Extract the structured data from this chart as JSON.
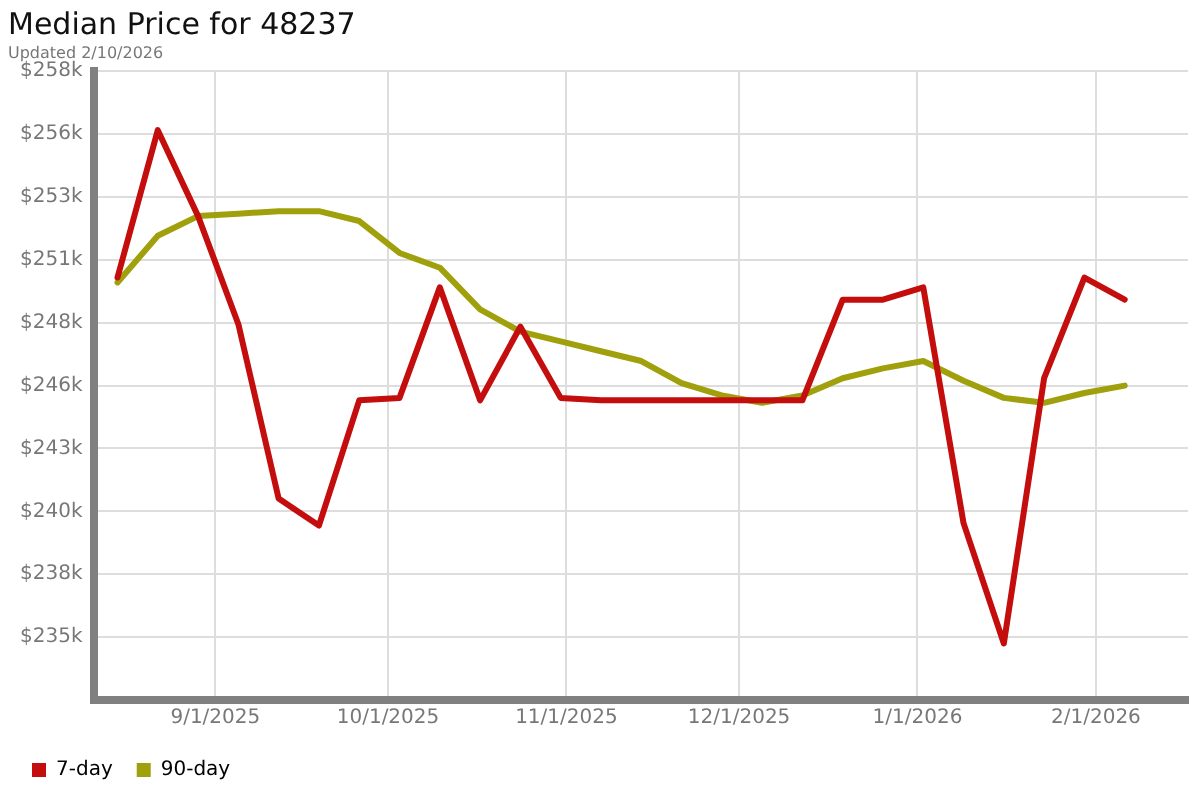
{
  "chart_data": {
    "type": "line",
    "title": "Median Price for 48237",
    "subtitle": "Updated 2/10/2026",
    "x": [
      "2025-08-15",
      "2025-08-22",
      "2025-08-29",
      "2025-09-05",
      "2025-09-12",
      "2025-09-19",
      "2025-09-26",
      "2025-10-03",
      "2025-10-10",
      "2025-10-17",
      "2025-10-24",
      "2025-10-31",
      "2025-11-07",
      "2025-11-14",
      "2025-11-21",
      "2025-11-28",
      "2025-12-05",
      "2025-12-12",
      "2025-12-19",
      "2025-12-26",
      "2026-01-02",
      "2026-01-09",
      "2026-01-16",
      "2026-01-23",
      "2026-01-30",
      "2026-02-06"
    ],
    "series": [
      {
        "name": "7-day",
        "color": "#c40d0d",
        "values": [
          249.9,
          255.9,
          252.4,
          248.0,
          240.9,
          239.8,
          244.9,
          245.0,
          249.5,
          244.9,
          247.9,
          245.0,
          244.9,
          244.9,
          244.9,
          244.9,
          244.9,
          244.9,
          249.0,
          249.0,
          249.5,
          239.9,
          235.0,
          245.8,
          249.9,
          249.0
        ]
      },
      {
        "name": "90-day",
        "color": "#a0a00c",
        "values": [
          249.7,
          251.6,
          252.4,
          252.5,
          252.6,
          252.6,
          252.2,
          250.9,
          250.3,
          248.6,
          247.7,
          247.3,
          246.9,
          246.5,
          245.6,
          245.1,
          244.8,
          245.1,
          245.8,
          246.2,
          246.5,
          245.7,
          245.0,
          244.8,
          245.2,
          245.5
        ]
      }
    ],
    "xlim": [
      "2025-08-11",
      "2026-02-17"
    ],
    "xticks": [
      {
        "value": "2025-09-01",
        "label": "9/1/2025"
      },
      {
        "value": "2025-10-01",
        "label": "10/1/2025"
      },
      {
        "value": "2025-11-01",
        "label": "11/1/2025"
      },
      {
        "value": "2025-12-01",
        "label": "12/1/2025"
      },
      {
        "value": "2026-01-01",
        "label": "1/1/2026"
      },
      {
        "value": "2026-02-01",
        "label": "2/1/2026"
      }
    ],
    "ylim": [
      232.7,
      258.3
    ],
    "yticks": [
      {
        "value": 235.26,
        "label": "$235k"
      },
      {
        "value": 237.82,
        "label": "$238k"
      },
      {
        "value": 240.38,
        "label": "$240k"
      },
      {
        "value": 242.94,
        "label": "$243k"
      },
      {
        "value": 245.5,
        "label": "$246k"
      },
      {
        "value": 248.06,
        "label": "$248k"
      },
      {
        "value": 250.62,
        "label": "$251k"
      },
      {
        "value": 253.18,
        "label": "$253k"
      },
      {
        "value": 255.74,
        "label": "$256k"
      },
      {
        "value": 258.3,
        "label": "$258k"
      }
    ],
    "grid": true,
    "legend": "bottom left",
    "marker": "none",
    "line_style": "solid"
  }
}
